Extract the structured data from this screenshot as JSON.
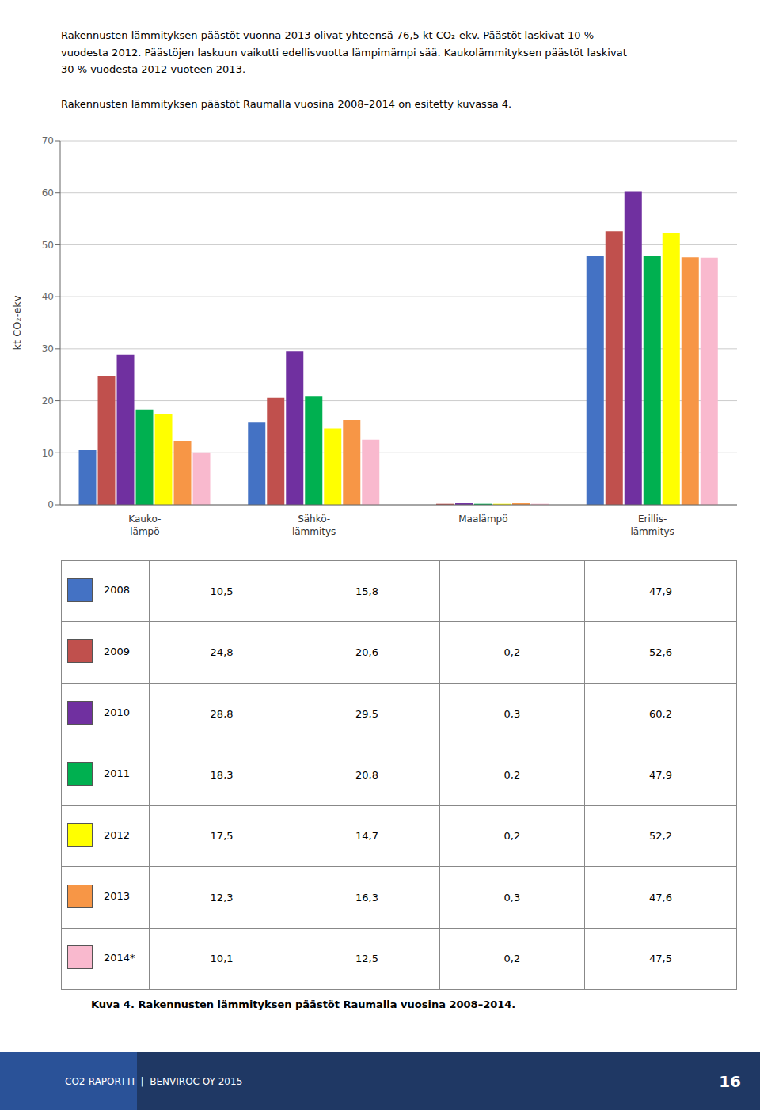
{
  "chart_data": {
    "type": "bar",
    "title": "Kuva 4. Rakennusten lämmityksen päästöt Raumalla vuosina 2008–2014.",
    "ylabel": "kt CO₂-ekv",
    "categories": [
      "Kauko-\nlämpö",
      "Sähkö-\nlämmitys",
      "Maalämpö",
      "Erillis-\nlämmitys"
    ],
    "series": [
      {
        "name": "2008",
        "color": "#4472C4",
        "values": [
          10.5,
          15.8,
          0.0,
          47.9
        ],
        "value_labels": [
          "10,5",
          "15,8",
          null,
          "47,9"
        ]
      },
      {
        "name": "2009",
        "color": "#C0504D",
        "values": [
          24.8,
          20.6,
          0.2,
          52.6
        ],
        "value_labels": [
          "24,8",
          "20,6",
          "0,2",
          "52,6"
        ]
      },
      {
        "name": "2010",
        "color": "#7030A0",
        "values": [
          28.8,
          29.5,
          0.3,
          60.2
        ],
        "value_labels": [
          "28,8",
          "29,5",
          "0,3",
          "60,2"
        ]
      },
      {
        "name": "2011",
        "color": "#00B050",
        "values": [
          18.3,
          20.8,
          0.2,
          47.9
        ],
        "value_labels": [
          "18,3",
          "20,8",
          "0,2",
          "47,9"
        ]
      },
      {
        "name": "2012",
        "color": "#FFFF00",
        "values": [
          17.5,
          14.7,
          0.2,
          52.2
        ],
        "value_labels": [
          "17,5",
          "14,7",
          "0,2",
          "52,2"
        ]
      },
      {
        "name": "2013",
        "color": "#F79646",
        "values": [
          12.3,
          16.3,
          0.3,
          47.6
        ],
        "value_labels": [
          "12,3",
          "16,3",
          "0,3",
          "47,6"
        ]
      },
      {
        "name": "2014*",
        "color": "#F9B9CE",
        "values": [
          10.1,
          12.5,
          0.2,
          47.5
        ],
        "value_labels": [
          "10,1",
          "12,5",
          "0,2",
          "47,5"
        ]
      }
    ],
    "ylim": [
      0,
      70
    ],
    "yticks": [
      0,
      10,
      20,
      30,
      40,
      50,
      60,
      70
    ],
    "grid": true,
    "annotations": [
      "Rakennusten lämmityksen päästöt vuonna 2013 olivat yhteensä 76,5 kt CO₂-ekv. Päästöt laskivat 10 %",
      "vuodesta 2012. Päästöjen laskuun vaikutti edellisvuotta lämpimämpi sää. Kaukolämmityksen päästöt laskivat",
      "30 % vuodesta 2012 vuoteen 2013.",
      "Rakennusten lämmityksen päästöt Raumalla vuosina 2008–2014 on esitetty kuvassa 4.",
      "CO2-RAPORTTI  |  BENVIROC OY 2015",
      "16"
    ]
  }
}
